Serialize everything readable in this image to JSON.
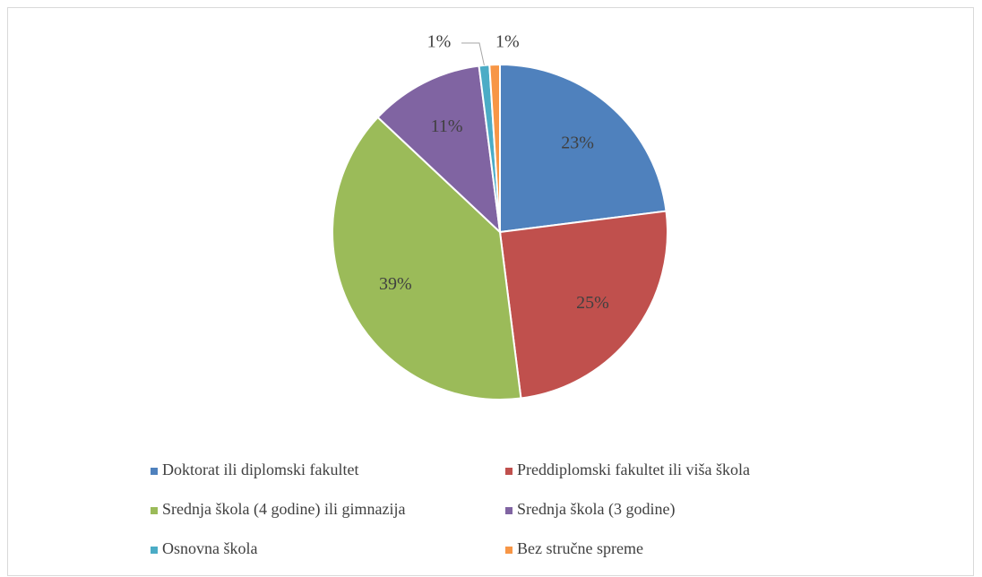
{
  "chart_data": {
    "type": "pie",
    "categories": [
      "Doktorat ili diplomski fakultet",
      "Preddiplomski fakultet ili viša škola",
      "Srednja škola (4 godine) ili gimnazija",
      "Srednja škola (3 godine)",
      "Osnovna škola",
      "Bez stručne spreme"
    ],
    "values": [
      23,
      25,
      39,
      11,
      1,
      1
    ],
    "value_labels": [
      "23%",
      "25%",
      "39%",
      "11%",
      "1%",
      "1%"
    ],
    "colors": [
      "#4f81bd",
      "#c0504d",
      "#9bbb59",
      "#8064a2",
      "#4bacc6",
      "#f79646"
    ],
    "legend": "bottom"
  }
}
